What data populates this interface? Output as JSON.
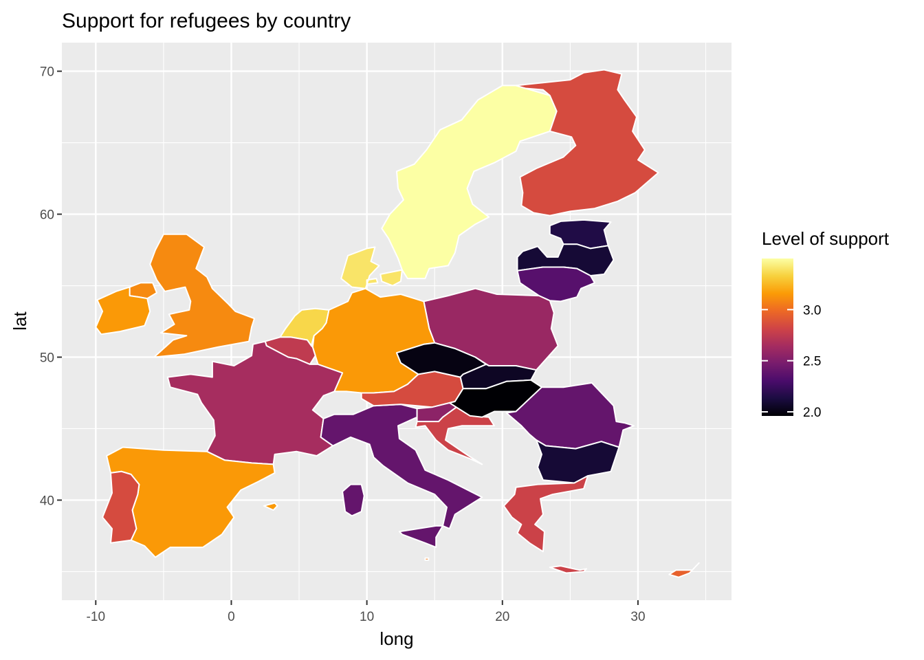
{
  "chart_data": {
    "type": "choropleth",
    "title": "Support for refugees by country",
    "xlabel": "long",
    "ylabel": "lat",
    "xlim": [
      -12.5,
      36.9
    ],
    "ylim": [
      33.0,
      72.0
    ],
    "x_ticks": [
      -10,
      0,
      10,
      20,
      30
    ],
    "y_ticks": [
      40,
      50,
      60,
      70
    ],
    "legend": {
      "title": "Level of support",
      "position": "right",
      "ticks": [
        2.0,
        2.5,
        3.0
      ],
      "range": [
        1.96,
        3.5
      ]
    },
    "grid": true,
    "regions": [
      {
        "name": "Sweden",
        "value": 3.5
      },
      {
        "name": "Finland",
        "value": 2.85
      },
      {
        "name": "Estonia",
        "value": 2.15
      },
      {
        "name": "Latvia",
        "value": 2.1
      },
      {
        "name": "Lithuania",
        "value": 2.35
      },
      {
        "name": "Poland",
        "value": 2.6
      },
      {
        "name": "Germany",
        "value": 3.15
      },
      {
        "name": "Denmark",
        "value": 3.4
      },
      {
        "name": "Netherlands",
        "value": 3.35
      },
      {
        "name": "Belgium",
        "value": 2.75
      },
      {
        "name": "France",
        "value": 2.65
      },
      {
        "name": "United Kingdom",
        "value": 3.1
      },
      {
        "name": "Ireland",
        "value": 3.15
      },
      {
        "name": "Spain",
        "value": 3.15
      },
      {
        "name": "Portugal",
        "value": 2.85
      },
      {
        "name": "Italy",
        "value": 2.4
      },
      {
        "name": "Austria",
        "value": 2.85
      },
      {
        "name": "Slovenia",
        "value": 2.55
      },
      {
        "name": "Croatia",
        "value": 2.8
      },
      {
        "name": "Czechia",
        "value": 2.0
      },
      {
        "name": "Slovakia",
        "value": 2.05
      },
      {
        "name": "Hungary",
        "value": 1.96
      },
      {
        "name": "Romania",
        "value": 2.4
      },
      {
        "name": "Bulgaria",
        "value": 2.1
      },
      {
        "name": "Greece",
        "value": 2.8
      },
      {
        "name": "Cyprus",
        "value": 2.95
      },
      {
        "name": "Malta",
        "value": 3.05
      }
    ],
    "colors": {
      "panel_bg": "#ebebeb",
      "grid": "#ffffff",
      "outline": "#ffffff",
      "scale": [
        "#000004",
        "#1b0c41",
        "#4a0c6b",
        "#781c6d",
        "#a52c60",
        "#cf4446",
        "#ed6925",
        "#fb9b06",
        "#f7d13d",
        "#fcffa4"
      ]
    }
  }
}
